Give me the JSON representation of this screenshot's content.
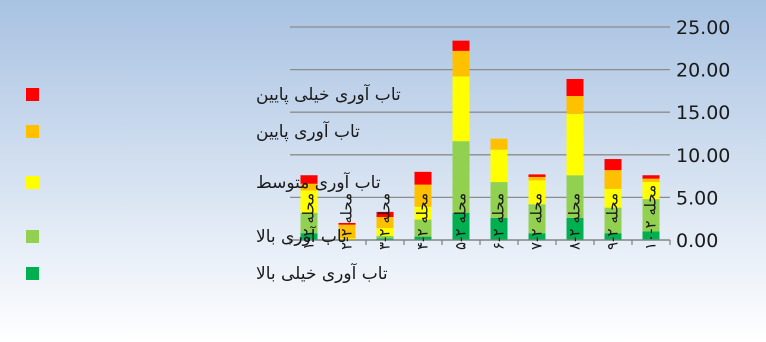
{
  "colors": {
    "bg_top": "#a8c2e2",
    "bg_bottom": "#ffffff",
    "grid": "#8c8c8c"
  },
  "chart_data": {
    "type": "bar",
    "stacked": true,
    "categories": [
      "محله ۲-۱",
      "محله ۲-۲",
      "محله ۲-۳",
      "محله ۲-۴",
      "محله ۲-۵",
      "محله ۲-۶",
      "محله ۲-۷",
      "محله ۲-۸",
      "محله ۲-۹",
      "محله ۲-۱۰"
    ],
    "series": [
      {
        "name": "تاب آوری خیلی بالا",
        "color": "#00b050",
        "values": [
          0.8,
          0.0,
          0.2,
          0.4,
          3.2,
          2.6,
          0.8,
          2.6,
          0.8,
          1.0
        ]
      },
      {
        "name": "تاب آوری بالا",
        "color": "#92d050",
        "values": [
          2.4,
          0.0,
          0.3,
          2.0,
          8.4,
          4.2,
          3.4,
          5.0,
          3.0,
          3.8
        ]
      },
      {
        "name": "تاب آوری متوسط",
        "color": "#ffff00",
        "values": [
          2.6,
          0.2,
          0.9,
          1.5,
          7.6,
          3.8,
          2.8,
          7.2,
          2.2,
          2.0
        ]
      },
      {
        "name": "تاب آوری پایین",
        "color": "#ffc000",
        "values": [
          0.8,
          1.6,
          1.3,
          2.6,
          3.0,
          1.3,
          0.4,
          2.1,
          2.2,
          0.4
        ]
      },
      {
        "name": "تاب آوری خیلی پایین",
        "color": "#ff0000",
        "values": [
          1.0,
          0.2,
          0.6,
          1.5,
          1.2,
          0.0,
          0.3,
          2.0,
          1.3,
          0.4
        ]
      }
    ],
    "yticks": [
      "0.00",
      "5.00",
      "10.00",
      "15.00",
      "20.00",
      "25.00"
    ],
    "ylim": [
      0,
      25
    ],
    "y_axis_side": "right",
    "grid": true,
    "legend_position": "left",
    "legend_order": [
      4,
      3,
      2,
      1,
      0
    ]
  }
}
